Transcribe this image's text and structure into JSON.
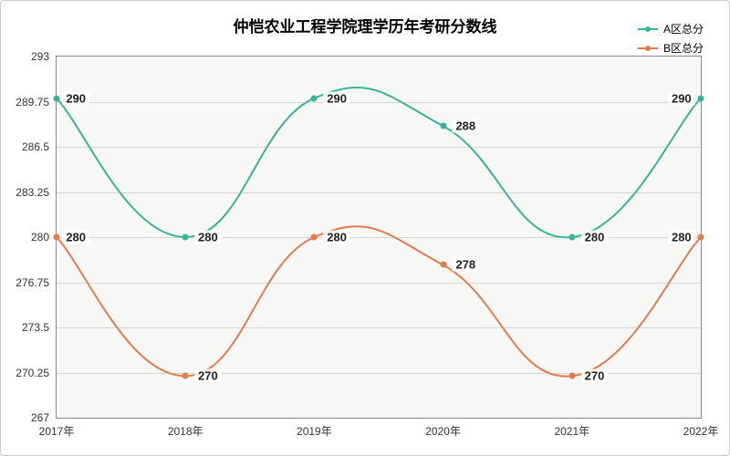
{
  "chart": {
    "type": "line",
    "title": "仲恺农业工程学院理学历年考研分数线",
    "title_fontsize": 17,
    "background_color": "#ffffff",
    "plot_background": "#f7f7f5",
    "grid_color": "#aaaaaa",
    "border_color": "#888888",
    "outer_border_color": "#cccccc",
    "categories": [
      "2017年",
      "2018年",
      "2019年",
      "2020年",
      "2021年",
      "2022年"
    ],
    "x_fontsize": 12,
    "y_fontsize": 12,
    "label_fontsize": 13,
    "ylim": [
      267,
      293
    ],
    "yticks": [
      267,
      270.25,
      273.5,
      276.75,
      280,
      283.25,
      286.5,
      289.75,
      293
    ],
    "curve_style": "spline",
    "line_width": 2,
    "marker_size": 7,
    "series": [
      {
        "name": "A区总分",
        "color": "#35b597",
        "values": [
          290,
          280,
          290,
          288,
          280,
          290
        ]
      },
      {
        "name": "B区总分",
        "color": "#e77a48",
        "values": [
          280,
          270,
          280,
          278,
          270,
          280
        ]
      }
    ],
    "legend": {
      "position": "top-right",
      "fontsize": 12
    }
  }
}
